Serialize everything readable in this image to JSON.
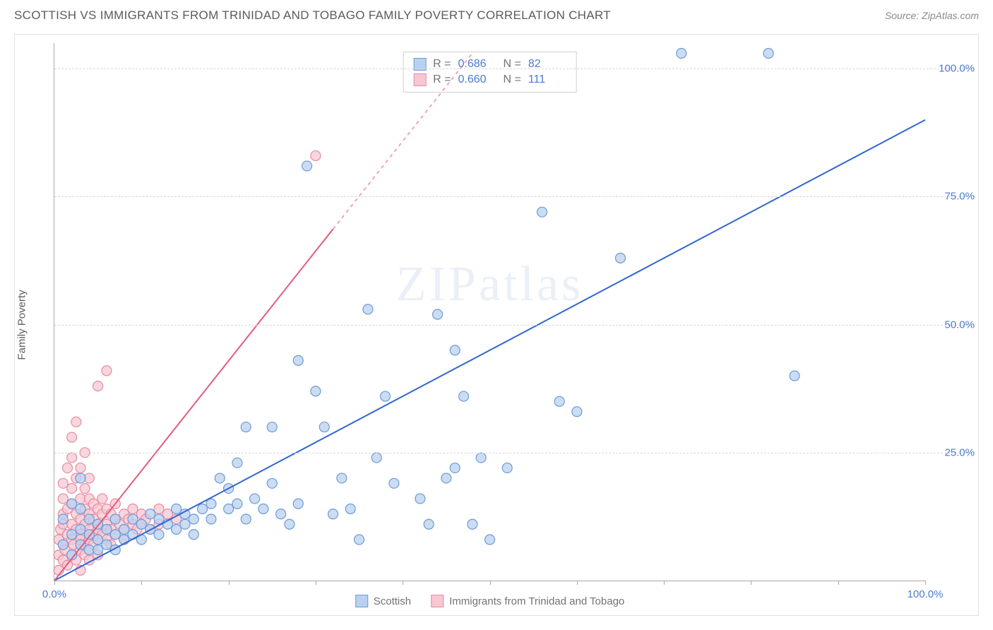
{
  "header": {
    "title": "SCOTTISH VS IMMIGRANTS FROM TRINIDAD AND TOBAGO FAMILY POVERTY CORRELATION CHART",
    "source": "Source: ZipAtlas.com"
  },
  "chart": {
    "type": "scatter",
    "ylabel": "Family Poverty",
    "watermark": "ZIPatlas",
    "xlim": [
      0,
      100
    ],
    "ylim": [
      0,
      105
    ],
    "xticks": [
      0,
      10,
      20,
      30,
      40,
      50,
      60,
      70,
      80,
      90,
      100
    ],
    "xtick_labels": {
      "0": "0.0%",
      "100": "100.0%"
    },
    "yticks": [
      25,
      50,
      75,
      100
    ],
    "ytick_labels": {
      "25": "25.0%",
      "50": "50.0%",
      "75": "75.0%",
      "100": "100.0%"
    },
    "background_color": "#ffffff",
    "grid_color": "#d8d8d8",
    "axis_color": "#aaaaaa",
    "tick_label_color": "#4a7bd0",
    "marker_radius": 7,
    "marker_stroke_width": 1.2,
    "line_width": 2,
    "series": [
      {
        "name": "Scottish",
        "fill": "#b9d0ef",
        "stroke": "#6b9bd8",
        "line_color": "#2f66d0",
        "R": "0.686",
        "N": "82",
        "trend": {
          "x1": 0,
          "y1": 0,
          "x2": 100,
          "y2": 90,
          "dash_after_x": null
        },
        "points": [
          [
            1,
            7
          ],
          [
            1,
            12
          ],
          [
            2,
            5
          ],
          [
            2,
            9
          ],
          [
            2,
            15
          ],
          [
            3,
            7
          ],
          [
            3,
            10
          ],
          [
            3,
            14
          ],
          [
            3,
            20
          ],
          [
            4,
            6
          ],
          [
            4,
            9
          ],
          [
            4,
            12
          ],
          [
            5,
            8
          ],
          [
            5,
            11
          ],
          [
            5,
            6
          ],
          [
            6,
            7
          ],
          [
            6,
            10
          ],
          [
            7,
            9
          ],
          [
            7,
            12
          ],
          [
            7,
            6
          ],
          [
            8,
            10
          ],
          [
            8,
            8
          ],
          [
            9,
            9
          ],
          [
            9,
            12
          ],
          [
            10,
            8
          ],
          [
            10,
            11
          ],
          [
            11,
            10
          ],
          [
            11,
            13
          ],
          [
            12,
            9
          ],
          [
            12,
            12
          ],
          [
            13,
            11
          ],
          [
            14,
            10
          ],
          [
            14,
            14
          ],
          [
            15,
            11
          ],
          [
            15,
            13
          ],
          [
            16,
            12
          ],
          [
            16,
            9
          ],
          [
            17,
            14
          ],
          [
            18,
            12
          ],
          [
            18,
            15
          ],
          [
            19,
            20
          ],
          [
            20,
            14
          ],
          [
            20,
            18
          ],
          [
            21,
            23
          ],
          [
            21,
            15
          ],
          [
            22,
            12
          ],
          [
            22,
            30
          ],
          [
            23,
            16
          ],
          [
            24,
            14
          ],
          [
            25,
            19
          ],
          [
            25,
            30
          ],
          [
            26,
            13
          ],
          [
            27,
            11
          ],
          [
            28,
            43
          ],
          [
            28,
            15
          ],
          [
            29,
            81
          ],
          [
            30,
            37
          ],
          [
            31,
            30
          ],
          [
            32,
            13
          ],
          [
            33,
            20
          ],
          [
            34,
            14
          ],
          [
            35,
            8
          ],
          [
            36,
            53
          ],
          [
            37,
            24
          ],
          [
            38,
            36
          ],
          [
            39,
            19
          ],
          [
            42,
            16
          ],
          [
            43,
            11
          ],
          [
            44,
            52
          ],
          [
            45,
            20
          ],
          [
            46,
            45
          ],
          [
            46,
            22
          ],
          [
            47,
            36
          ],
          [
            48,
            11
          ],
          [
            49,
            24
          ],
          [
            50,
            8
          ],
          [
            52,
            22
          ],
          [
            56,
            72
          ],
          [
            58,
            35
          ],
          [
            60,
            33
          ],
          [
            65,
            63
          ],
          [
            72,
            103
          ],
          [
            82,
            103
          ],
          [
            85,
            40
          ]
        ]
      },
      {
        "name": "Immigrants from Trinidad and Tobago",
        "fill": "#f6c8d2",
        "stroke": "#e78aa2",
        "line_color": "#e25b82",
        "R": "0.660",
        "N": "111",
        "trend": {
          "x1": 0,
          "y1": 0,
          "x2": 48,
          "y2": 103,
          "dash_after_x": 32
        },
        "points": [
          [
            0.5,
            2
          ],
          [
            0.5,
            5
          ],
          [
            0.5,
            8
          ],
          [
            0.7,
            10
          ],
          [
            1,
            4
          ],
          [
            1,
            7
          ],
          [
            1,
            11
          ],
          [
            1,
            13
          ],
          [
            1,
            16
          ],
          [
            1,
            19
          ],
          [
            1.2,
            6
          ],
          [
            1.5,
            9
          ],
          [
            1.5,
            3
          ],
          [
            1.5,
            14
          ],
          [
            1.5,
            22
          ],
          [
            2,
            5
          ],
          [
            2,
            8
          ],
          [
            2,
            11
          ],
          [
            2,
            15
          ],
          [
            2,
            18
          ],
          [
            2,
            24
          ],
          [
            2,
            28
          ],
          [
            2.2,
            7
          ],
          [
            2.5,
            10
          ],
          [
            2.5,
            13
          ],
          [
            2.5,
            20
          ],
          [
            2.5,
            4
          ],
          [
            2.5,
            31
          ],
          [
            3,
            6
          ],
          [
            3,
            9
          ],
          [
            3,
            12
          ],
          [
            3,
            16
          ],
          [
            3,
            8
          ],
          [
            3,
            22
          ],
          [
            3,
            2
          ],
          [
            3.5,
            11
          ],
          [
            3.5,
            14
          ],
          [
            3.5,
            18
          ],
          [
            3.5,
            5
          ],
          [
            3.5,
            7
          ],
          [
            3.5,
            25
          ],
          [
            4,
            10
          ],
          [
            4,
            13
          ],
          [
            4,
            8
          ],
          [
            4,
            16
          ],
          [
            4,
            6
          ],
          [
            4,
            4
          ],
          [
            4,
            20
          ],
          [
            4.5,
            12
          ],
          [
            4.5,
            9
          ],
          [
            4.5,
            15
          ],
          [
            4.5,
            7
          ],
          [
            5,
            11
          ],
          [
            5,
            14
          ],
          [
            5,
            8
          ],
          [
            5,
            10
          ],
          [
            5,
            5
          ],
          [
            5,
            38
          ],
          [
            5.5,
            13
          ],
          [
            5.5,
            9
          ],
          [
            5.5,
            16
          ],
          [
            6,
            11
          ],
          [
            6,
            14
          ],
          [
            6,
            8
          ],
          [
            6,
            41
          ],
          [
            6.5,
            10
          ],
          [
            6.5,
            13
          ],
          [
            6.5,
            7
          ],
          [
            7,
            12
          ],
          [
            7,
            9
          ],
          [
            7,
            15
          ],
          [
            7.5,
            11
          ],
          [
            8,
            13
          ],
          [
            8,
            10
          ],
          [
            8,
            8
          ],
          [
            8.5,
            12
          ],
          [
            9,
            11
          ],
          [
            9,
            14
          ],
          [
            9.5,
            10
          ],
          [
            10,
            13
          ],
          [
            10,
            11
          ],
          [
            10.5,
            12
          ],
          [
            11,
            10
          ],
          [
            12,
            14
          ],
          [
            12,
            11
          ],
          [
            13,
            13
          ],
          [
            14,
            12
          ],
          [
            30,
            83
          ]
        ]
      }
    ],
    "legend_series_labels": [
      "Scottish",
      "Immigrants from Trinidad and Tobago"
    ],
    "corr_label_R": "R =",
    "corr_label_N": "N ="
  }
}
